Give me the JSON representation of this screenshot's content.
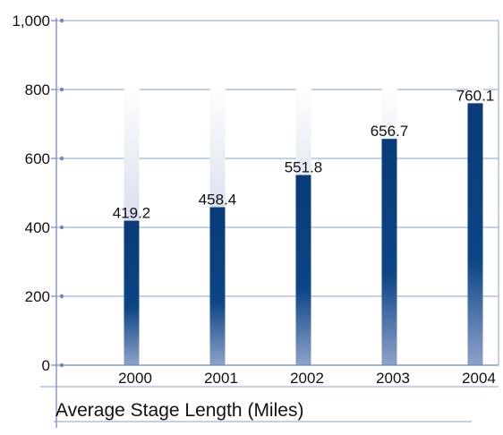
{
  "chart_data": {
    "type": "bar",
    "title": "Average Stage Length (Miles)",
    "xlabel": "",
    "ylabel": "",
    "categories": [
      "2000",
      "2001",
      "2002",
      "2003",
      "2004"
    ],
    "values": [
      419.2,
      458.4,
      551.8,
      656.7,
      760.1
    ],
    "data_labels": [
      "419.2",
      "458.4",
      "551.8",
      "656.7",
      "760.1"
    ],
    "ylim": [
      0,
      1000
    ],
    "yticks": [
      0,
      200,
      400,
      600,
      800,
      1000
    ],
    "ytick_labels": [
      "0",
      "200",
      "400",
      "600",
      "800",
      "1,000"
    ],
    "background_ghost_value": 820,
    "grid": true,
    "colors": {
      "bar_top": "#0a3a78",
      "bar_bottom": "#8aa0c8",
      "ghost": "#c9d4e8",
      "grid": "#8aa0c8",
      "axis": "#6f86b4"
    }
  }
}
